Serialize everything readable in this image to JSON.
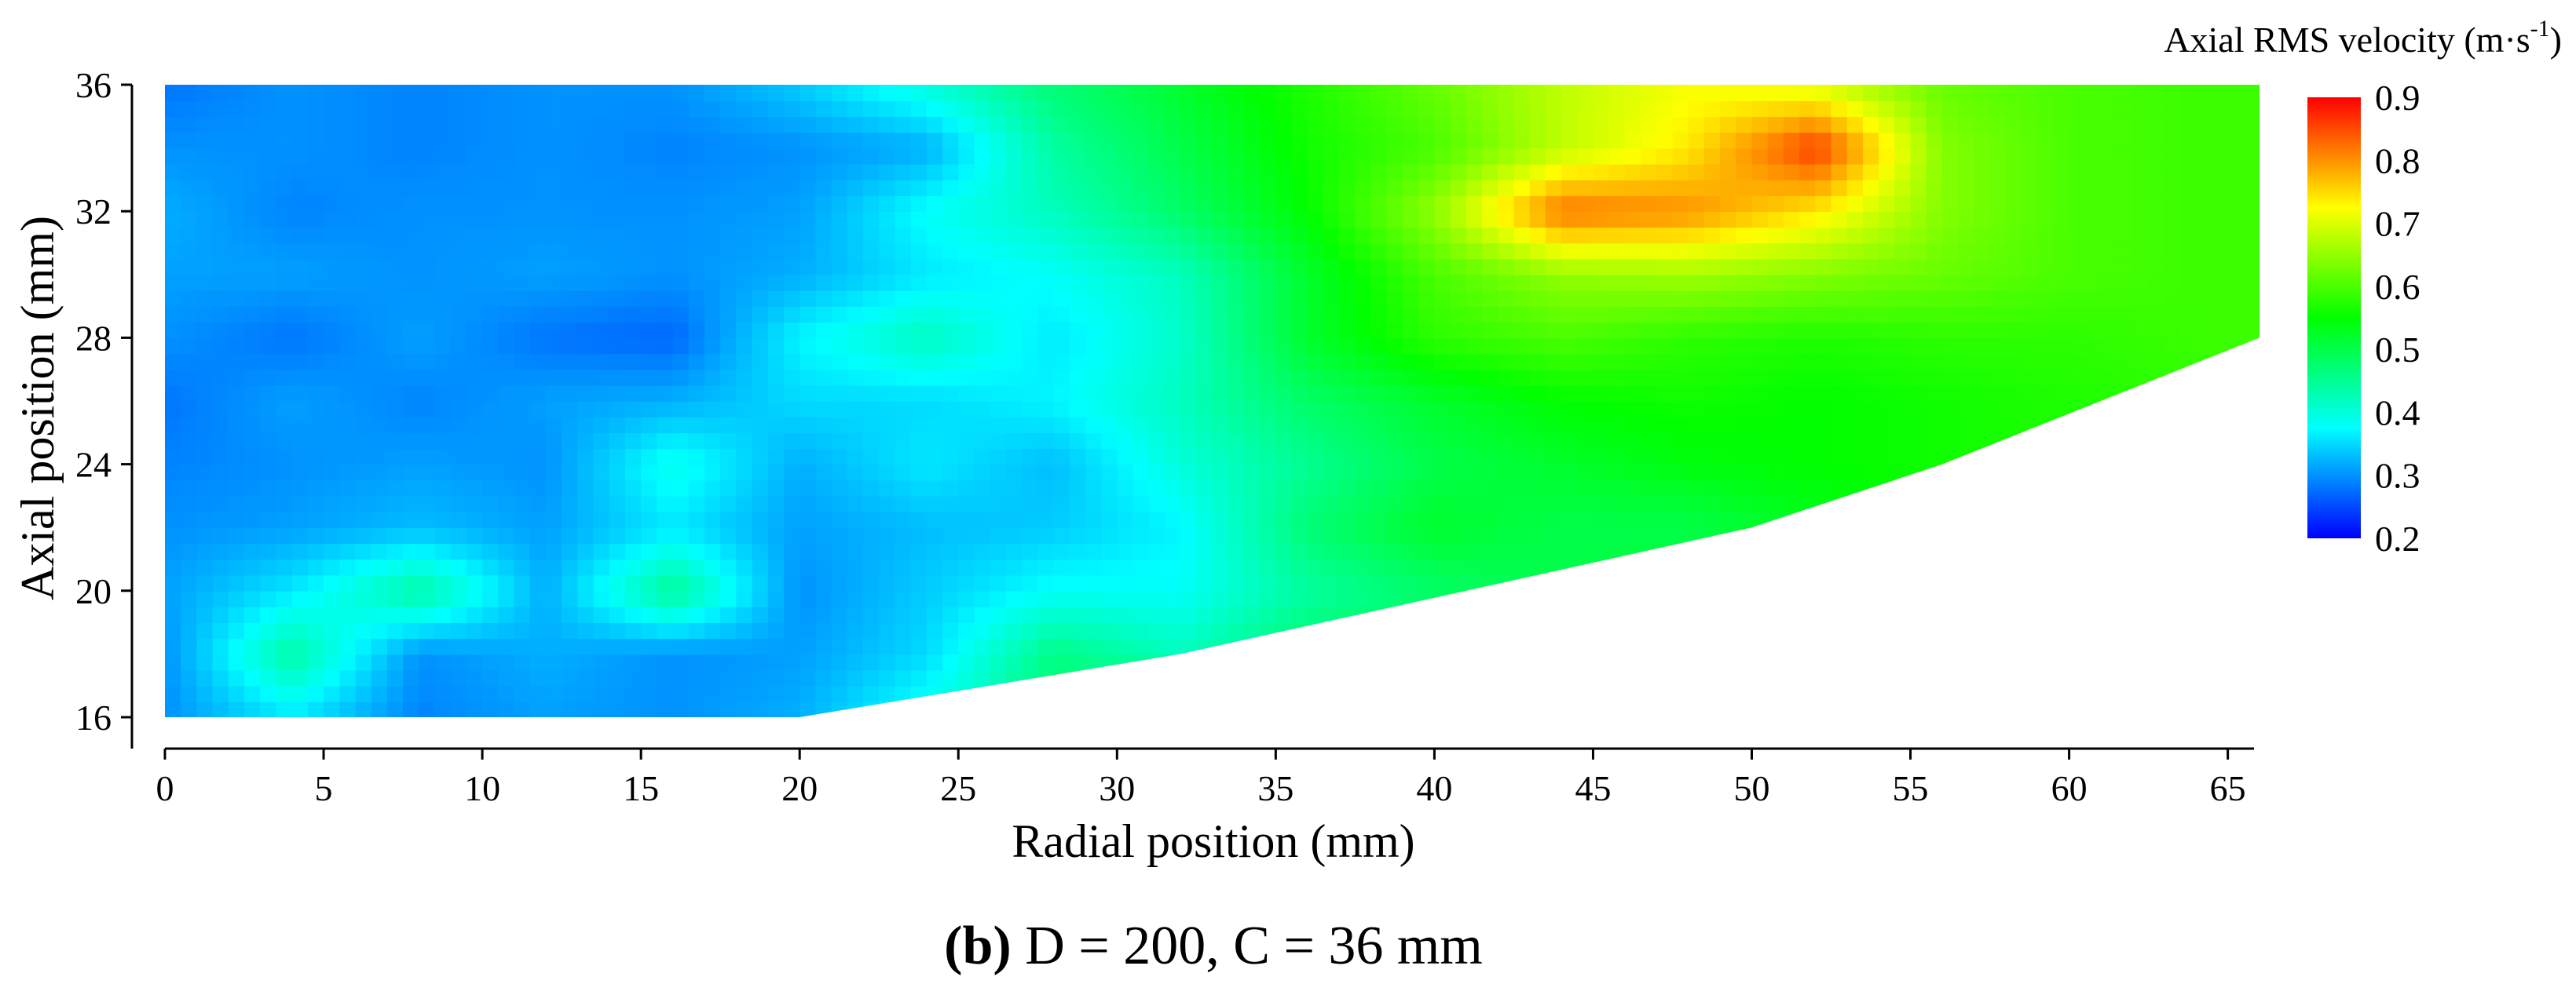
{
  "caption": {
    "panel_letter": "(b)",
    "text": " D = 200, C = 36 mm"
  },
  "chart_data": {
    "type": "heatmap",
    "title": "",
    "xlabel": "Radial position (mm)",
    "ylabel": "Axial position (mm)",
    "xlim": [
      -1,
      66
    ],
    "ylim": [
      15,
      36
    ],
    "xticks": [
      0,
      5,
      10,
      15,
      20,
      25,
      30,
      35,
      40,
      45,
      50,
      55,
      60,
      65
    ],
    "yticks": [
      16,
      20,
      24,
      28,
      32,
      36
    ],
    "colorbar": {
      "title_main": "Axial RMS velocity (m·s",
      "title_exp": "-1",
      "title_close": ")",
      "min": 0.2,
      "max": 0.9,
      "ticks": [
        0.2,
        0.3,
        0.4,
        0.5,
        0.6,
        0.7,
        0.8,
        0.9
      ],
      "colormap": [
        "#0000ff",
        "#0080ff",
        "#00ffff",
        "#00ff80",
        "#00ff00",
        "#80ff00",
        "#ffff00",
        "#ff8000",
        "#ff0000"
      ]
    },
    "domain_boundary": [
      [
        0,
        16
      ],
      [
        20,
        16
      ],
      [
        32,
        18
      ],
      [
        50,
        22
      ],
      [
        56,
        24
      ],
      [
        66,
        28
      ],
      [
        66,
        36
      ],
      [
        0,
        36
      ]
    ],
    "grid_x": [
      0,
      4,
      8,
      12,
      16,
      20,
      24,
      28,
      32,
      36,
      40,
      44,
      48,
      52,
      56,
      60,
      64,
      66
    ],
    "grid_y": [
      16,
      18,
      20,
      22,
      24,
      26,
      28,
      30,
      32,
      34,
      36
    ],
    "values": [
      [
        0.3,
        0.36,
        0.29,
        0.31,
        0.3,
        0.32,
        0.39,
        0.48,
        0.55,
        0.52,
        0.56,
        0.56,
        0.54,
        0.58,
        0.6,
        0.6,
        0.59,
        0.59
      ],
      [
        0.3,
        0.44,
        0.3,
        0.32,
        0.3,
        0.31,
        0.35,
        0.46,
        0.42,
        0.48,
        0.5,
        0.54,
        0.56,
        0.58,
        0.6,
        0.59,
        0.59,
        0.59
      ],
      [
        0.31,
        0.36,
        0.44,
        0.32,
        0.45,
        0.3,
        0.34,
        0.38,
        0.38,
        0.44,
        0.48,
        0.5,
        0.52,
        0.55,
        0.58,
        0.59,
        0.59,
        0.59
      ],
      [
        0.3,
        0.31,
        0.33,
        0.31,
        0.36,
        0.31,
        0.33,
        0.34,
        0.37,
        0.47,
        0.52,
        0.5,
        0.5,
        0.53,
        0.55,
        0.57,
        0.58,
        0.58
      ],
      [
        0.29,
        0.3,
        0.31,
        0.3,
        0.39,
        0.32,
        0.36,
        0.33,
        0.4,
        0.45,
        0.5,
        0.52,
        0.54,
        0.55,
        0.56,
        0.57,
        0.58,
        0.58
      ],
      [
        0.28,
        0.31,
        0.29,
        0.31,
        0.32,
        0.35,
        0.35,
        0.37,
        0.42,
        0.48,
        0.52,
        0.55,
        0.56,
        0.55,
        0.56,
        0.57,
        0.58,
        0.58
      ],
      [
        0.3,
        0.28,
        0.31,
        0.28,
        0.27,
        0.37,
        0.42,
        0.36,
        0.41,
        0.52,
        0.58,
        0.6,
        0.58,
        0.57,
        0.58,
        0.58,
        0.59,
        0.59
      ],
      [
        0.31,
        0.31,
        0.3,
        0.31,
        0.3,
        0.32,
        0.36,
        0.38,
        0.42,
        0.52,
        0.6,
        0.65,
        0.66,
        0.64,
        0.62,
        0.6,
        0.59,
        0.59
      ],
      [
        0.32,
        0.29,
        0.3,
        0.3,
        0.3,
        0.31,
        0.38,
        0.42,
        0.48,
        0.55,
        0.65,
        0.82,
        0.8,
        0.74,
        0.64,
        0.6,
        0.59,
        0.59
      ],
      [
        0.3,
        0.3,
        0.29,
        0.3,
        0.29,
        0.3,
        0.32,
        0.44,
        0.5,
        0.56,
        0.6,
        0.68,
        0.74,
        0.86,
        0.64,
        0.6,
        0.59,
        0.59
      ],
      [
        0.28,
        0.3,
        0.29,
        0.3,
        0.3,
        0.34,
        0.4,
        0.47,
        0.52,
        0.57,
        0.62,
        0.68,
        0.72,
        0.7,
        0.62,
        0.6,
        0.59,
        0.59
      ]
    ]
  }
}
